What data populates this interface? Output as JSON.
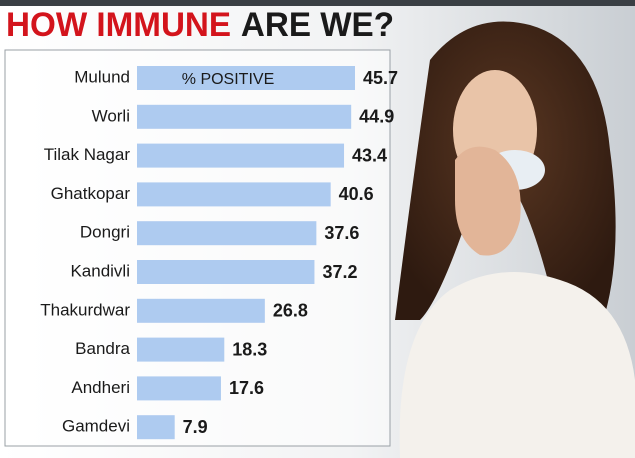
{
  "chart_data": {
    "type": "bar",
    "title": [
      {
        "text": "HOW IMMUNE",
        "color": "#d3141c"
      },
      {
        "text": "ARE WE?",
        "color": "#1a1a1a"
      }
    ],
    "categories": [
      "Mulund",
      "Worli",
      "Tilak Nagar",
      "Ghatkopar",
      "Dongri",
      "Kandivli",
      "Thakurdwar",
      "Bandra",
      "Andheri",
      "Gamdevi"
    ],
    "series": [
      {
        "name": "% POSITIVE",
        "color": "#aecbf0",
        "values": [
          45.7,
          44.9,
          43.4,
          40.6,
          37.6,
          37.2,
          26.8,
          18.3,
          17.6,
          7.9
        ]
      }
    ]
  }
}
